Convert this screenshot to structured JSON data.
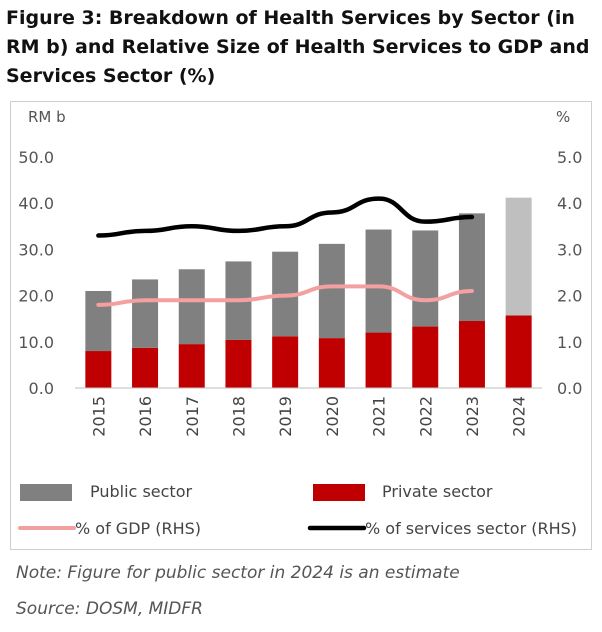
{
  "title": "Figure 3: Breakdown of Health Services by Sector (in RM b) and Relative Size of Health Services to GDP and Services Sector (%)",
  "note": "Note: Figure for public sector in 2024 is an estimate",
  "source": "Source: DOSM, MIDFR",
  "chart_data": {
    "type": "bar",
    "stacked": true,
    "categories": [
      "2015",
      "2016",
      "2017",
      "2018",
      "2019",
      "2020",
      "2021",
      "2022",
      "2023",
      "2024"
    ],
    "ylabel": "RM b",
    "ylabel_right": "%",
    "ylim": [
      0,
      50
    ],
    "ylim_right": [
      0,
      5
    ],
    "yticks": [
      "0.0",
      "10.0",
      "20.0",
      "30.0",
      "40.0",
      "50.0"
    ],
    "yticks_right": [
      "0.0",
      "1.0",
      "2.0",
      "3.0",
      "4.0",
      "5.0"
    ],
    "grid": false,
    "legend_position": "bottom",
    "series": [
      {
        "name": "Private sector",
        "kind": "bar",
        "color": "#c00000",
        "values": [
          8.0,
          8.7,
          9.5,
          10.4,
          11.2,
          10.8,
          12.0,
          13.3,
          14.5,
          15.7
        ]
      },
      {
        "name": "Public sector",
        "kind": "bar",
        "color": "#808080",
        "estimate_color": "#bfbfbf",
        "values": [
          13.0,
          14.8,
          16.2,
          17.0,
          18.3,
          20.4,
          22.3,
          20.8,
          23.3,
          25.5
        ]
      },
      {
        "name": "% of GDP (RHS)",
        "kind": "line",
        "axis": "right",
        "color": "#f4a0a0",
        "values": [
          1.8,
          1.9,
          1.9,
          1.9,
          2.0,
          2.2,
          2.2,
          1.9,
          2.1,
          null
        ]
      },
      {
        "name": "% of services sector (RHS)",
        "kind": "line",
        "axis": "right",
        "color": "#000000",
        "values": [
          3.3,
          3.4,
          3.5,
          3.4,
          3.5,
          3.8,
          4.1,
          3.6,
          3.7,
          null
        ]
      }
    ],
    "legend": [
      {
        "label": "Public sector",
        "swatch": "box",
        "color": "#808080"
      },
      {
        "label": "Private sector",
        "swatch": "box",
        "color": "#c00000"
      },
      {
        "label": "% of GDP (RHS)",
        "swatch": "line",
        "color": "#f4a0a0"
      },
      {
        "label": "% of services sector (RHS)",
        "swatch": "line",
        "color": "#000000"
      }
    ]
  }
}
